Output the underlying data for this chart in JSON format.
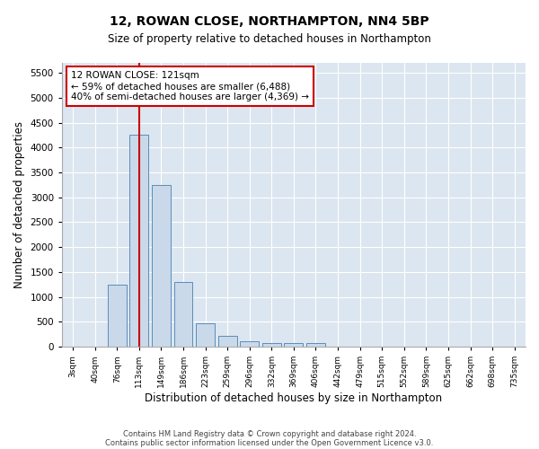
{
  "title": "12, ROWAN CLOSE, NORTHAMPTON, NN4 5BP",
  "subtitle": "Size of property relative to detached houses in Northampton",
  "xlabel": "Distribution of detached houses by size in Northampton",
  "ylabel": "Number of detached properties",
  "footnote1": "Contains HM Land Registry data © Crown copyright and database right 2024.",
  "footnote2": "Contains public sector information licensed under the Open Government Licence v3.0.",
  "annotation_line1": "12 ROWAN CLOSE: 121sqm",
  "annotation_line2": "← 59% of detached houses are smaller (6,488)",
  "annotation_line3": "40% of semi-detached houses are larger (4,369) →",
  "vline_index": 3.0,
  "bar_color": "#c9d9ea",
  "bar_edge_color": "#5b8db8",
  "vline_color": "#cc0000",
  "annotation_box_edge": "#cc0000",
  "background_color": "#dce6f0",
  "categories": [
    "3sqm",
    "40sqm",
    "76sqm",
    "113sqm",
    "149sqm",
    "186sqm",
    "223sqm",
    "259sqm",
    "296sqm",
    "332sqm",
    "369sqm",
    "406sqm",
    "442sqm",
    "479sqm",
    "515sqm",
    "552sqm",
    "589sqm",
    "625sqm",
    "662sqm",
    "698sqm",
    "735sqm"
  ],
  "values": [
    0,
    0,
    1250,
    4250,
    3250,
    1300,
    475,
    225,
    100,
    75,
    75,
    75,
    0,
    0,
    0,
    0,
    0,
    0,
    0,
    0,
    0
  ],
  "ylim": [
    0,
    5700
  ],
  "yticks": [
    0,
    500,
    1000,
    1500,
    2000,
    2500,
    3000,
    3500,
    4000,
    4500,
    5000,
    5500
  ]
}
